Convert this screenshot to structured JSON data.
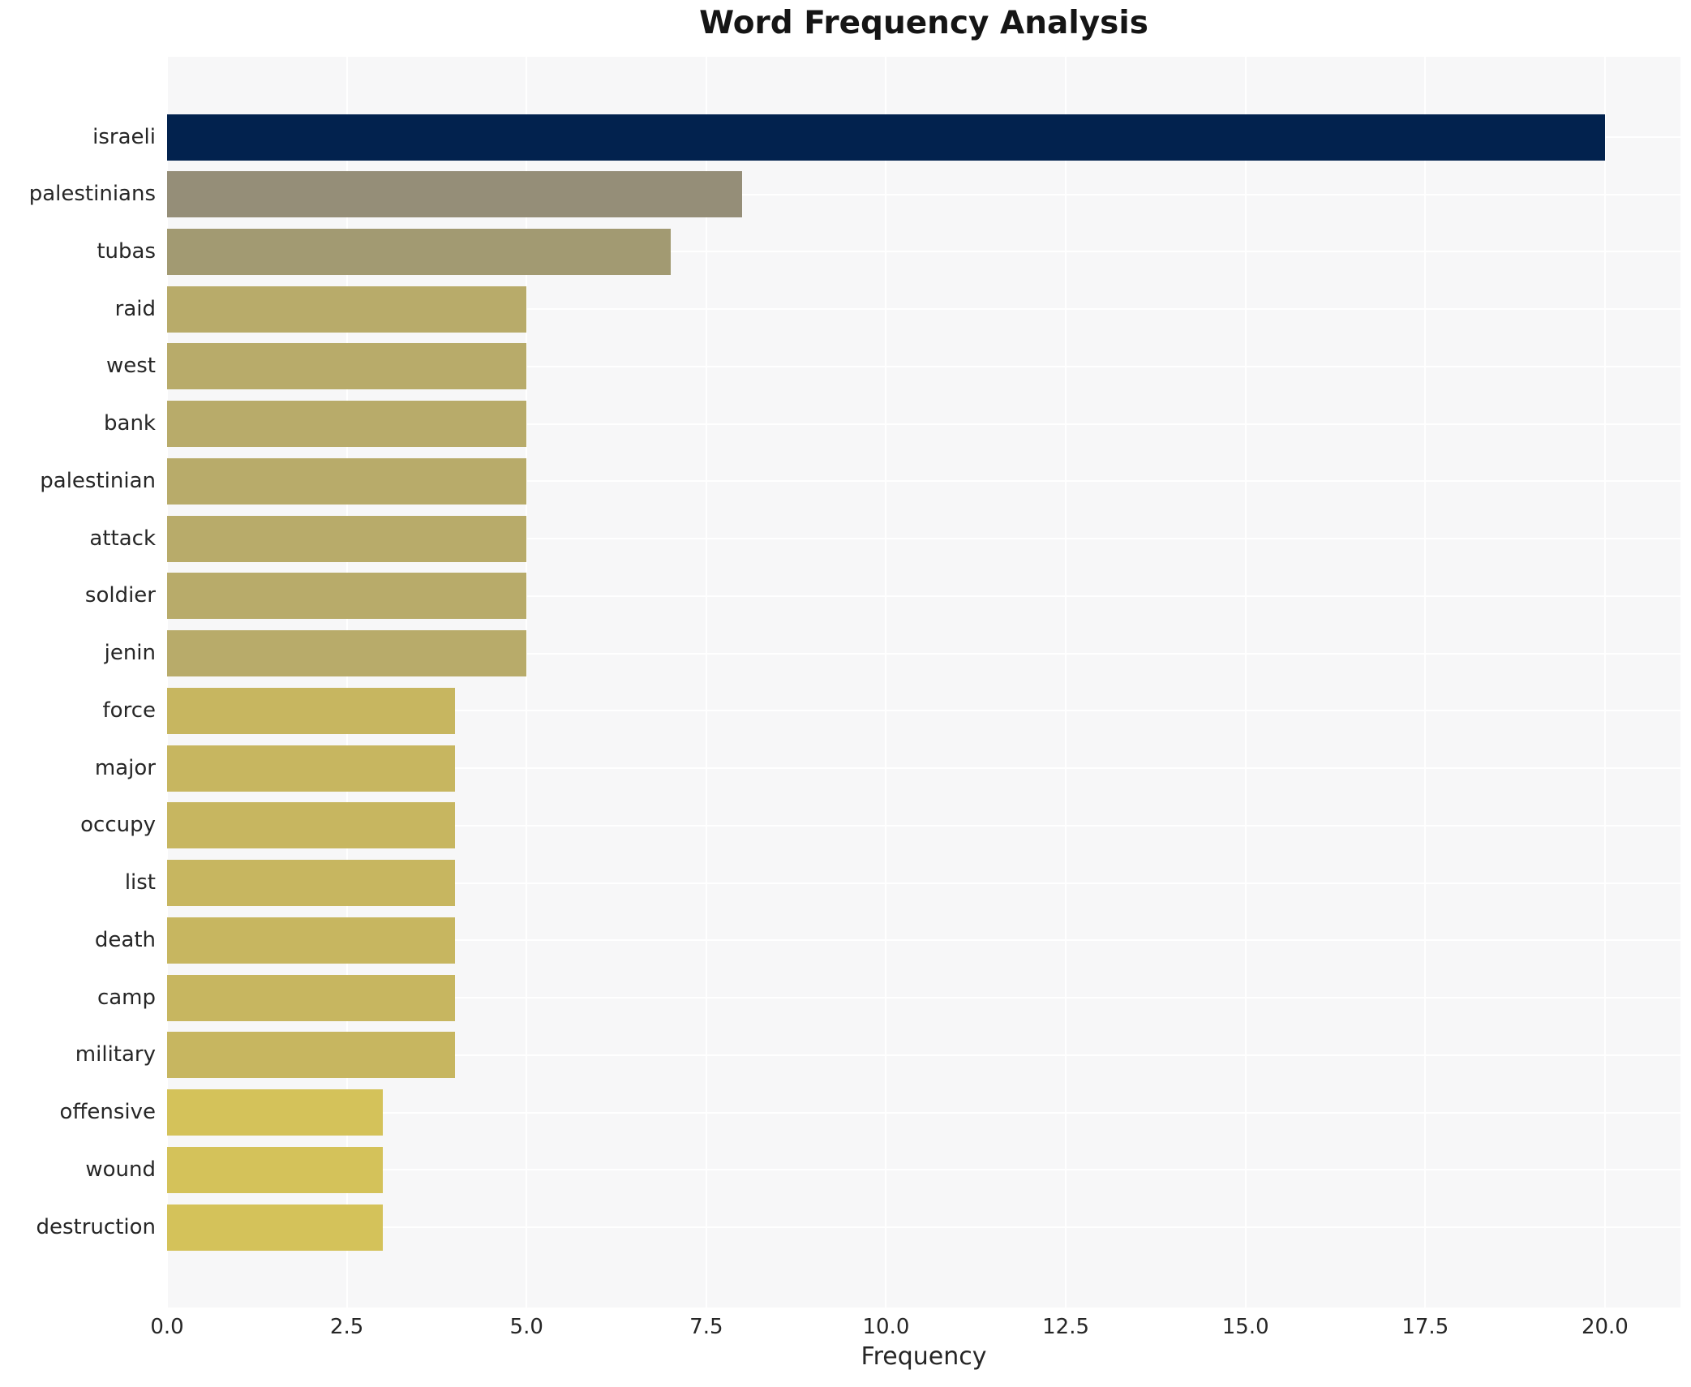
{
  "chart_data": {
    "type": "bar",
    "orientation": "horizontal",
    "title": "Word Frequency Analysis",
    "xlabel": "Frequency",
    "ylabel": "",
    "categories": [
      "israeli",
      "palestinians",
      "tubas",
      "raid",
      "west",
      "bank",
      "palestinian",
      "attack",
      "soldier",
      "jenin",
      "force",
      "major",
      "occupy",
      "list",
      "death",
      "camp",
      "military",
      "offensive",
      "wound",
      "destruction"
    ],
    "values": [
      20,
      8,
      7,
      5,
      5,
      5,
      5,
      5,
      5,
      5,
      4,
      4,
      4,
      4,
      4,
      4,
      4,
      3,
      3,
      3
    ],
    "bar_colors": [
      "#02224e",
      "#958e78",
      "#a29a72",
      "#b8ab6a",
      "#b8ab6a",
      "#b8ab6a",
      "#b8ab6a",
      "#b8ab6a",
      "#b8ab6a",
      "#b8ab6a",
      "#c7b660",
      "#c7b660",
      "#c7b660",
      "#c7b660",
      "#c7b660",
      "#c7b660",
      "#c7b660",
      "#d4c25a",
      "#d4c25a",
      "#d4c25a"
    ],
    "xticks": [
      0.0,
      2.5,
      5.0,
      7.5,
      10.0,
      12.5,
      15.0,
      17.5,
      20.0
    ],
    "xtick_labels": [
      "0.0",
      "2.5",
      "5.0",
      "7.5",
      "10.0",
      "12.5",
      "15.0",
      "17.5",
      "20.0"
    ],
    "xlim": [
      0,
      21.05
    ],
    "grid": true,
    "legend": false,
    "plot_bg_color": "#f7f7f8",
    "grid_color": "#ffffff",
    "text_color": "#262626",
    "title_color": "#151515"
  }
}
